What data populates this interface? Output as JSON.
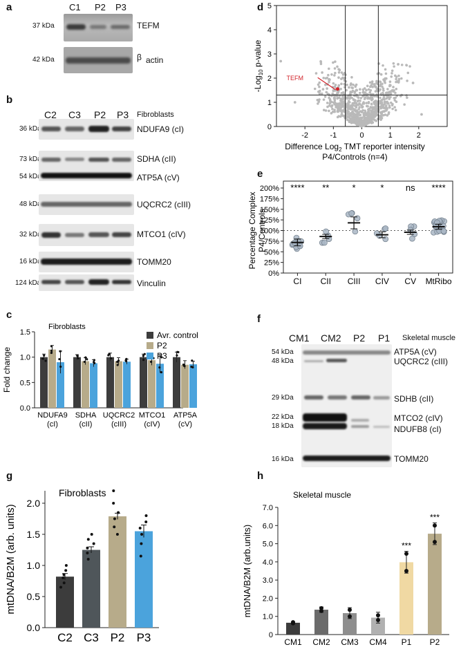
{
  "panels": {
    "a": {
      "letter": "a",
      "lanes": [
        "C1",
        "P2",
        "P3"
      ],
      "rows": [
        {
          "kda": "37 kDa",
          "label": "TEFM"
        },
        {
          "kda": "42 kDa",
          "beta": "β",
          "label": "actin"
        }
      ]
    },
    "b": {
      "letter": "b",
      "lanes": [
        "C2",
        "C3",
        "P2",
        "P3"
      ],
      "tissue": "Fibroblasts",
      "rows": [
        {
          "kda": "36 kDa",
          "label": "NDUFA9 (cI)"
        },
        {
          "kda": "73 kDa",
          "label": "SDHA (cII)"
        },
        {
          "kda": "54 kDa",
          "label": "ATP5A (cV)"
        },
        {
          "kda": "48 kDa",
          "label": "UQCRC2 (cIII)"
        },
        {
          "kda": "32 kDa",
          "label": "MTCO1 (cIV)"
        },
        {
          "kda": "16 kDa",
          "label": "TOMM20"
        },
        {
          "kda": "124 kDa",
          "label": "Vinculin"
        }
      ]
    },
    "f": {
      "letter": "f",
      "lanes": [
        "CM1",
        "CM2",
        "P2",
        "P1"
      ],
      "tissue": "Skeletal muscle",
      "rows": [
        {
          "kda": "54 kDa",
          "label": "ATP5A (cV)"
        },
        {
          "kda": "48 kDa",
          "label": "UQCRC2 (cIII)"
        },
        {
          "kda": "29 kDa",
          "label": "SDHB (cII)"
        },
        {
          "kda": "22 kDa",
          "label": "MTCO2 (cIV)"
        },
        {
          "kda": "18 kDa",
          "label": "NDUFB8 (cI)"
        },
        {
          "kda": "16 kDa",
          "label": "TOMM20"
        }
      ]
    }
  },
  "chart_data": [
    {
      "panel": "c",
      "type": "bar",
      "title": "Fibroblasts",
      "ylabel": "Fold change",
      "ylim": [
        0,
        1.5
      ],
      "yticks": [
        "0.0",
        "0.5",
        "1.0",
        "1.5"
      ],
      "categories": [
        "NDUFA9\n(cI)",
        "SDHA\n(cII)",
        "UQCRC2\n(cIII)",
        "MTCO1\n(cIV)",
        "ATP5A\n(cV)"
      ],
      "category_lines": [
        [
          "NDUFA9",
          "(cI)"
        ],
        [
          "SDHA",
          "(cII)"
        ],
        [
          "UQCRC2",
          "(cIII)"
        ],
        [
          "MTCO1",
          "(cIV)"
        ],
        [
          "ATP5A",
          "(cV)"
        ]
      ],
      "series": [
        {
          "name": "Avr. control",
          "color": "#3d3d3d",
          "values": [
            1.0,
            1.0,
            1.0,
            1.0,
            1.0
          ],
          "err": [
            0.06,
            0.05,
            0.08,
            0.06,
            0.1
          ]
        },
        {
          "name": "P2",
          "color": "#b7ab8a",
          "values": [
            1.15,
            0.92,
            0.92,
            0.94,
            0.85
          ],
          "err": [
            0.08,
            0.07,
            0.07,
            0.1,
            0.08
          ]
        },
        {
          "name": "P3",
          "color": "#4ba3dc",
          "values": [
            0.9,
            0.88,
            0.91,
            0.87,
            0.86
          ],
          "err": [
            0.22,
            0.07,
            0.05,
            0.18,
            0.06
          ]
        }
      ],
      "legend": "top-right"
    },
    {
      "panel": "d",
      "type": "scatter",
      "xlabel": "Difference Log2 TMT reporter intensity",
      "xlabel_main": "Difference Log",
      "xlabel_sub": "2",
      "xlabel_rest": " TMT reporter intensity",
      "xlabel2": "P4/Controls (n=4)",
      "ylabel": "-Log10 p-value",
      "ylabel_pre": "-Log",
      "ylabel_sub": "10",
      "ylabel_post": " p-value",
      "xlim": [
        -3,
        3
      ],
      "ylim": [
        0,
        5
      ],
      "xticks": [
        "-2",
        "-1",
        "0",
        "1",
        "2"
      ],
      "yticks": [
        "0",
        "1",
        "2",
        "3",
        "4",
        "5"
      ],
      "threshold_x": [
        -0.58,
        0.58
      ],
      "threshold_y": 1.3,
      "highlight": {
        "name": "TEFM",
        "x": -0.85,
        "y": 1.55,
        "color": "#d2232a"
      }
    },
    {
      "panel": "e",
      "type": "scatter",
      "ylabel": "Percentage Complex",
      "ylabel2": "P4/Controls",
      "categories": [
        "CI",
        "CII",
        "CIII",
        "CIV",
        "CV",
        "MtRibo"
      ],
      "ylim": [
        0,
        200
      ],
      "yticks": [
        "0%",
        "25%",
        "50%",
        "75%",
        "100%",
        "125%",
        "150%",
        "175%",
        "200%"
      ],
      "means": [
        72,
        86,
        118,
        90,
        96,
        109
      ],
      "sems": [
        8,
        5,
        14,
        7,
        5,
        6
      ],
      "significance": [
        "****",
        "**",
        "*",
        "*",
        "ns",
        "****"
      ],
      "reference_line": 100
    },
    {
      "panel": "g",
      "type": "bar",
      "title": "Fibroblasts",
      "ylabel": "mtDNA/B2M (arb. units)",
      "categories": [
        "C2",
        "C3",
        "P2",
        "P3"
      ],
      "values": [
        0.82,
        1.25,
        1.79,
        1.55
      ],
      "err": [
        0.05,
        0.05,
        0.05,
        0.1
      ],
      "colors": [
        "#3c3c3c",
        "#4f565a",
        "#b7ab8a",
        "#4ba3dc"
      ],
      "points": [
        [
          0.65,
          0.72,
          0.8,
          0.85,
          0.92,
          1.0
        ],
        [
          1.1,
          1.2,
          1.28,
          1.35,
          1.42,
          1.5
        ],
        [
          1.5,
          1.62,
          1.75,
          1.85,
          2.0,
          2.2
        ],
        [
          1.15,
          1.35,
          1.5,
          1.6,
          1.7,
          1.8
        ]
      ],
      "ylim": [
        0,
        2.2
      ],
      "yticks": [
        "0.0",
        "0.5",
        "1.0",
        "1.5",
        "2.0"
      ]
    },
    {
      "panel": "h",
      "type": "bar",
      "title": "Skeletal muscle",
      "ylabel": "mtDNA/B2M (arb.units)",
      "categories": [
        "CM1",
        "CM2",
        "CM3",
        "CM4",
        "P1",
        "P2"
      ],
      "values": [
        0.65,
        1.37,
        1.18,
        0.93,
        3.98,
        5.55
      ],
      "err": [
        0.05,
        0.15,
        0.3,
        0.3,
        0.6,
        0.6
      ],
      "colors": [
        "#3c3c3c",
        "#6b6b6b",
        "#8e8e8e",
        "#b1b1b1",
        "#f0d9a3",
        "#b7ab8a"
      ],
      "points": [
        [
          0.62,
          0.68
        ],
        [
          1.3,
          1.45
        ],
        [
          1.0,
          1.36
        ],
        [
          0.8,
          1.06
        ],
        [
          3.5,
          4.45
        ],
        [
          5.1,
          6.0
        ]
      ],
      "significance": [
        "",
        "",
        "",
        "",
        "***",
        "***"
      ],
      "ylim": [
        0,
        7
      ],
      "yticks": [
        "0",
        "1.0",
        "2.0",
        "3.0",
        "4.0",
        "5.0",
        "6.0",
        "7.0"
      ]
    }
  ]
}
